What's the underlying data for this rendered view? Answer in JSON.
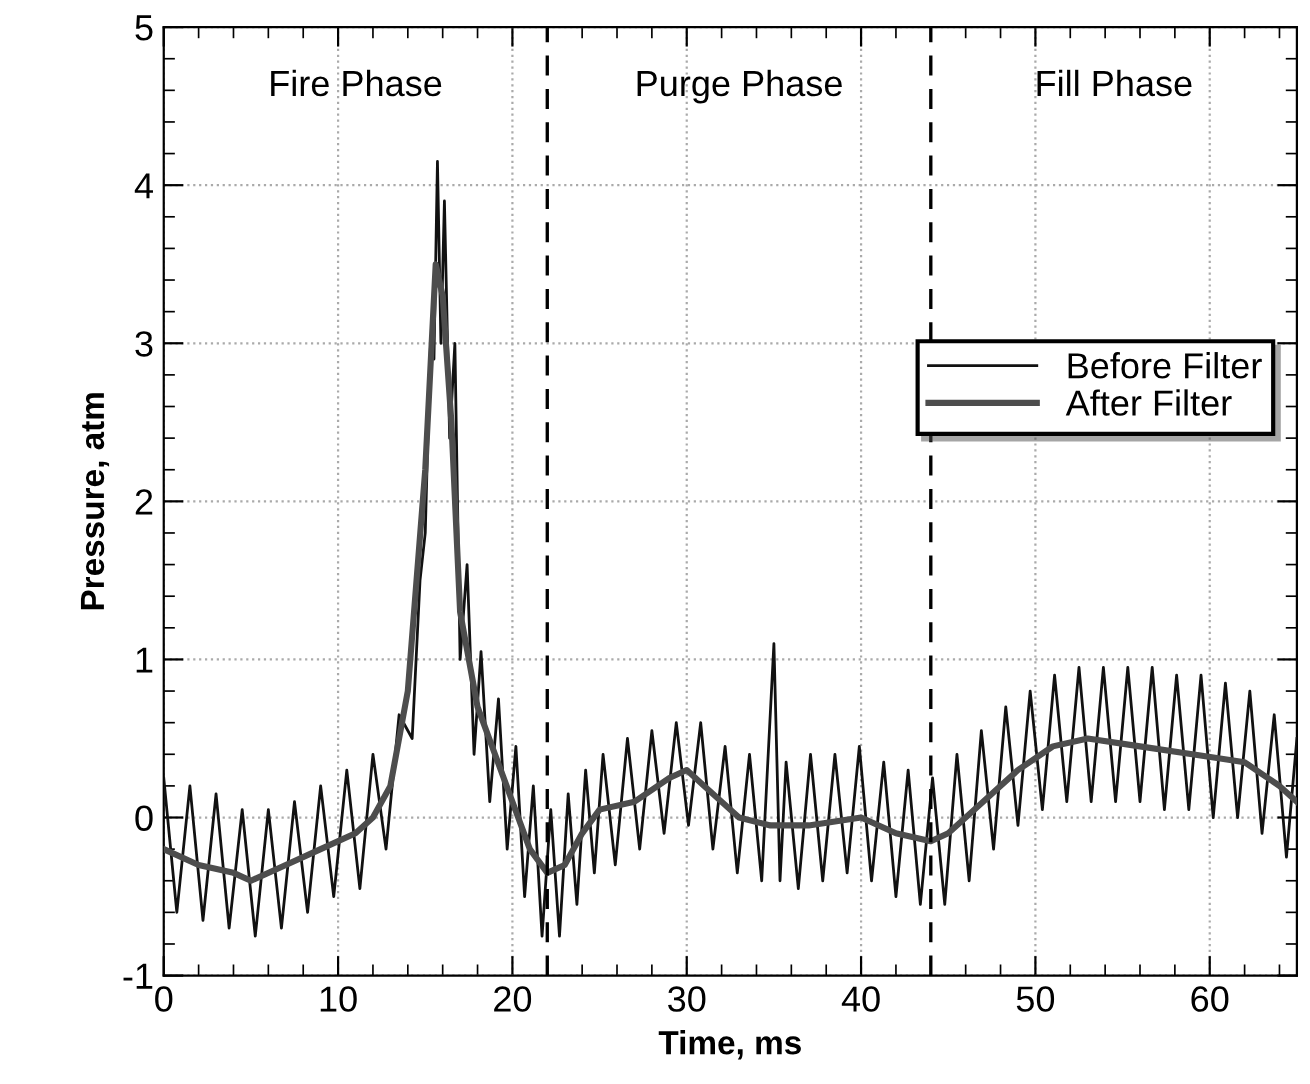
{
  "chart_data": {
    "type": "line",
    "xlabel": "Time, ms",
    "ylabel": "Pressure, atm",
    "x": [
      0,
      2,
      4,
      5,
      7,
      9,
      11,
      12,
      13,
      14,
      15,
      15.6,
      16,
      16.5,
      17,
      18,
      19,
      20,
      21,
      22,
      23,
      24,
      25,
      27,
      29,
      30,
      31,
      33,
      34.8,
      35,
      35.2,
      37,
      40,
      42,
      44,
      45,
      47,
      49,
      51,
      53,
      56,
      59,
      62,
      64,
      65
    ],
    "series": [
      {
        "name": "Before Filter",
        "color": "#111111",
        "x": [
          0,
          0.75,
          1.5,
          2.25,
          3,
          3.75,
          4.5,
          5.25,
          6,
          6.75,
          7.5,
          8.25,
          9,
          9.75,
          10.5,
          11.25,
          12,
          12.75,
          13.5,
          14.25,
          14.7,
          15,
          15.3,
          15.5,
          15.7,
          15.9,
          16.1,
          16.4,
          16.7,
          17,
          17.4,
          17.8,
          18.2,
          18.7,
          19.2,
          19.7,
          20.2,
          20.7,
          21.2,
          21.7,
          22.2,
          22.7,
          23.2,
          23.7,
          24.2,
          24.7,
          25.2,
          25.9,
          26.6,
          27.3,
          28,
          28.7,
          29.4,
          30.1,
          30.8,
          31.5,
          32.2,
          32.9,
          33.6,
          34.3,
          35,
          35.35,
          35.7,
          36.4,
          37.1,
          37.8,
          38.5,
          39.2,
          39.9,
          40.6,
          41.3,
          42,
          42.7,
          43.4,
          44.1,
          44.8,
          45.5,
          46.2,
          46.9,
          47.6,
          48.3,
          49,
          49.7,
          50.4,
          51.1,
          51.8,
          52.5,
          53.2,
          53.9,
          54.6,
          55.3,
          56,
          56.7,
          57.4,
          58.1,
          58.8,
          59.5,
          60.2,
          60.9,
          61.6,
          62.3,
          63,
          63.7,
          64.4,
          65
        ],
        "values": [
          0.25,
          -0.6,
          0.2,
          -0.65,
          0.15,
          -0.7,
          0.05,
          -0.75,
          0.05,
          -0.7,
          0.1,
          -0.6,
          0.2,
          -0.5,
          0.3,
          -0.45,
          0.4,
          -0.2,
          0.65,
          0.5,
          1.5,
          1.8,
          3.0,
          2.9,
          4.15,
          3.0,
          3.9,
          2.4,
          3.0,
          1.0,
          1.6,
          0.4,
          1.05,
          0.1,
          0.75,
          -0.2,
          0.45,
          -0.5,
          0.2,
          -0.75,
          0.05,
          -0.75,
          0.15,
          -0.55,
          0.3,
          -0.35,
          0.4,
          -0.3,
          0.5,
          -0.2,
          0.55,
          -0.1,
          0.6,
          -0.05,
          0.6,
          -0.2,
          0.45,
          -0.35,
          0.4,
          -0.4,
          1.1,
          -0.4,
          0.35,
          -0.45,
          0.4,
          -0.4,
          0.4,
          -0.35,
          0.45,
          -0.4,
          0.35,
          -0.5,
          0.3,
          -0.55,
          0.25,
          -0.55,
          0.4,
          -0.4,
          0.55,
          -0.2,
          0.7,
          -0.05,
          0.8,
          0.05,
          0.9,
          0.1,
          0.95,
          0.1,
          0.95,
          0.1,
          0.95,
          0.1,
          0.95,
          0.05,
          0.9,
          0.05,
          0.9,
          0.0,
          0.85,
          0.0,
          0.8,
          -0.1,
          0.65,
          -0.25,
          0.5
        ]
      },
      {
        "name": "After Filter",
        "color": "#4d4d4d",
        "values": [
          -0.2,
          -0.3,
          -0.35,
          -0.4,
          -0.3,
          -0.2,
          -0.1,
          0.0,
          0.2,
          0.8,
          2.2,
          3.5,
          3.3,
          2.5,
          1.3,
          0.7,
          0.4,
          0.1,
          -0.2,
          -0.35,
          -0.3,
          -0.1,
          0.05,
          0.1,
          0.25,
          0.3,
          0.2,
          0.0,
          -0.05,
          -0.05,
          -0.05,
          -0.05,
          0.0,
          -0.1,
          -0.15,
          -0.1,
          0.1,
          0.3,
          0.45,
          0.5,
          0.45,
          0.4,
          0.35,
          0.2,
          0.1
        ]
      }
    ],
    "xlim": [
      0,
      65
    ],
    "ylim": [
      -1,
      5
    ],
    "xticks": [
      0,
      10,
      20,
      30,
      40,
      50,
      60
    ],
    "yticks": [
      {
        "value": -1,
        "label": "-1"
      },
      0,
      1,
      2,
      3,
      4,
      5
    ],
    "ref_lines": [
      {
        "axis": "x",
        "value": 22,
        "line_style": "dashed",
        "color": "#000000"
      },
      {
        "axis": "x",
        "value": 44,
        "line_style": "dashed",
        "color": "#000000"
      }
    ],
    "annotations": [
      "Fire Phase",
      "Purge Phase",
      "Fill Phase"
    ],
    "grid": true,
    "legend": "right",
    "line_style": "solid",
    "marker": "none"
  }
}
